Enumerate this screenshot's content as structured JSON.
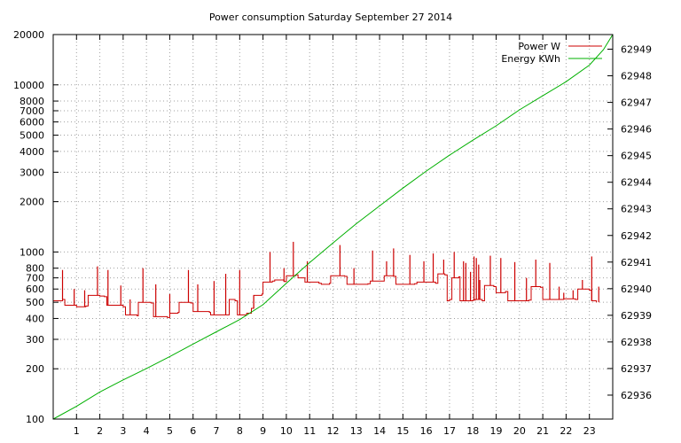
{
  "chart_data": {
    "type": "line",
    "title": "Power consumption Saturday September 27 2014",
    "x": {
      "ticks": [
        1,
        2,
        3,
        4,
        5,
        6,
        7,
        8,
        9,
        10,
        11,
        12,
        13,
        14,
        15,
        16,
        17,
        18,
        19,
        20,
        21,
        22,
        23
      ],
      "range": [
        0,
        24
      ]
    },
    "y_left": {
      "scale": "log",
      "range": [
        100,
        20000
      ],
      "ticks": [
        100,
        200,
        300,
        400,
        500,
        600,
        700,
        800,
        1000,
        2000,
        3000,
        4000,
        5000,
        6000,
        7000,
        8000,
        10000,
        20000
      ]
    },
    "y_right": {
      "scale": "linear",
      "range": [
        62935.1,
        62949.55
      ],
      "ticks": [
        62936,
        62937,
        62938,
        62939,
        62940,
        62941,
        62942,
        62943,
        62944,
        62945,
        62946,
        62947,
        62948,
        62949
      ]
    },
    "grid": true,
    "legend_position": "top-right",
    "series": [
      {
        "name": "Power W",
        "color": "#cc0000",
        "axis": "left",
        "points": [
          [
            0.0,
            510
          ],
          [
            0.4,
            520
          ],
          [
            0.5,
            480
          ],
          [
            1.0,
            470
          ],
          [
            1.4,
            475
          ],
          [
            1.5,
            550
          ],
          [
            2.0,
            545
          ],
          [
            2.2,
            540
          ],
          [
            2.3,
            480
          ],
          [
            3.0,
            470
          ],
          [
            3.1,
            420
          ],
          [
            3.6,
            415
          ],
          [
            3.65,
            500
          ],
          [
            4.2,
            495
          ],
          [
            4.3,
            410
          ],
          [
            4.9,
            405
          ],
          [
            5.0,
            430
          ],
          [
            5.35,
            435
          ],
          [
            5.4,
            500
          ],
          [
            5.9,
            495
          ],
          [
            6.0,
            440
          ],
          [
            6.7,
            435
          ],
          [
            6.75,
            420
          ],
          [
            7.5,
            420
          ],
          [
            7.55,
            520
          ],
          [
            7.8,
            510
          ],
          [
            7.9,
            420
          ],
          [
            8.3,
            430
          ],
          [
            8.5,
            460
          ],
          [
            8.6,
            550
          ],
          [
            8.95,
            560
          ],
          [
            9.0,
            660
          ],
          [
            9.4,
            670
          ],
          [
            9.5,
            680
          ],
          [
            9.9,
            665
          ],
          [
            10.0,
            720
          ],
          [
            10.4,
            730
          ],
          [
            10.5,
            700
          ],
          [
            10.8,
            660
          ],
          [
            11.4,
            650
          ],
          [
            11.5,
            640
          ],
          [
            11.85,
            650
          ],
          [
            11.9,
            720
          ],
          [
            12.5,
            715
          ],
          [
            12.6,
            640
          ],
          [
            13.5,
            645
          ],
          [
            13.6,
            670
          ],
          [
            14.1,
            670
          ],
          [
            14.2,
            720
          ],
          [
            14.6,
            715
          ],
          [
            14.7,
            640
          ],
          [
            15.5,
            645
          ],
          [
            15.6,
            660
          ],
          [
            16.4,
            650
          ],
          [
            16.5,
            740
          ],
          [
            16.8,
            730
          ],
          [
            16.9,
            510
          ],
          [
            17.0,
            520
          ],
          [
            17.1,
            700
          ],
          [
            17.4,
            710
          ],
          [
            17.45,
            510
          ],
          [
            18.0,
            515
          ],
          [
            18.1,
            520
          ],
          [
            18.4,
            510
          ],
          [
            18.5,
            630
          ],
          [
            18.9,
            620
          ],
          [
            19.0,
            570
          ],
          [
            19.4,
            580
          ],
          [
            19.5,
            510
          ],
          [
            20.4,
            515
          ],
          [
            20.5,
            620
          ],
          [
            20.9,
            615
          ],
          [
            21.0,
            520
          ],
          [
            21.8,
            520
          ],
          [
            21.9,
            525
          ],
          [
            22.4,
            520
          ],
          [
            22.5,
            600
          ],
          [
            23.0,
            590
          ],
          [
            23.1,
            510
          ],
          [
            23.3,
            500
          ]
        ],
        "spikes": [
          [
            0.4,
            780
          ],
          [
            0.9,
            600
          ],
          [
            1.35,
            590
          ],
          [
            1.9,
            820
          ],
          [
            2.35,
            780
          ],
          [
            2.9,
            630
          ],
          [
            3.3,
            520
          ],
          [
            3.85,
            800
          ],
          [
            4.4,
            640
          ],
          [
            5.0,
            560
          ],
          [
            5.8,
            780
          ],
          [
            6.2,
            640
          ],
          [
            6.9,
            670
          ],
          [
            7.4,
            740
          ],
          [
            8.0,
            780
          ],
          [
            8.6,
            460
          ],
          [
            9.3,
            1000
          ],
          [
            9.9,
            800
          ],
          [
            10.3,
            1150
          ],
          [
            10.9,
            880
          ],
          [
            12.3,
            1100
          ],
          [
            12.9,
            800
          ],
          [
            13.7,
            1020
          ],
          [
            14.3,
            880
          ],
          [
            14.6,
            1050
          ],
          [
            15.3,
            960
          ],
          [
            15.9,
            880
          ],
          [
            16.3,
            980
          ],
          [
            16.75,
            900
          ],
          [
            17.2,
            1000
          ],
          [
            17.6,
            880
          ],
          [
            17.7,
            860
          ],
          [
            17.9,
            760
          ],
          [
            18.05,
            940
          ],
          [
            18.15,
            920
          ],
          [
            18.25,
            840
          ],
          [
            18.3,
            680
          ],
          [
            18.75,
            950
          ],
          [
            19.2,
            920
          ],
          [
            19.8,
            870
          ],
          [
            20.3,
            700
          ],
          [
            20.7,
            900
          ],
          [
            21.3,
            860
          ],
          [
            21.7,
            620
          ],
          [
            21.9,
            570
          ],
          [
            22.3,
            590
          ],
          [
            22.7,
            680
          ],
          [
            23.1,
            940
          ],
          [
            23.4,
            620
          ]
        ]
      },
      {
        "name": "Energy KWh",
        "color": "#00b000",
        "axis": "right",
        "points": [
          [
            0.0,
            62935.1
          ],
          [
            1.0,
            62935.58
          ],
          [
            2.0,
            62936.12
          ],
          [
            3.0,
            62936.57
          ],
          [
            4.0,
            62937.0
          ],
          [
            5.0,
            62937.45
          ],
          [
            6.0,
            62937.92
          ],
          [
            7.0,
            62938.38
          ],
          [
            8.0,
            62938.84
          ],
          [
            9.0,
            62939.4
          ],
          [
            10.0,
            62940.2
          ],
          [
            11.0,
            62940.98
          ],
          [
            12.0,
            62941.72
          ],
          [
            13.0,
            62942.44
          ],
          [
            14.0,
            62943.11
          ],
          [
            15.0,
            62943.78
          ],
          [
            16.0,
            62944.42
          ],
          [
            17.0,
            62945.02
          ],
          [
            18.0,
            62945.58
          ],
          [
            19.0,
            62946.12
          ],
          [
            20.0,
            62946.72
          ],
          [
            21.0,
            62947.25
          ],
          [
            22.0,
            62947.78
          ],
          [
            23.0,
            62948.4
          ],
          [
            23.6,
            62948.98
          ],
          [
            24.0,
            62949.55
          ]
        ]
      }
    ]
  }
}
